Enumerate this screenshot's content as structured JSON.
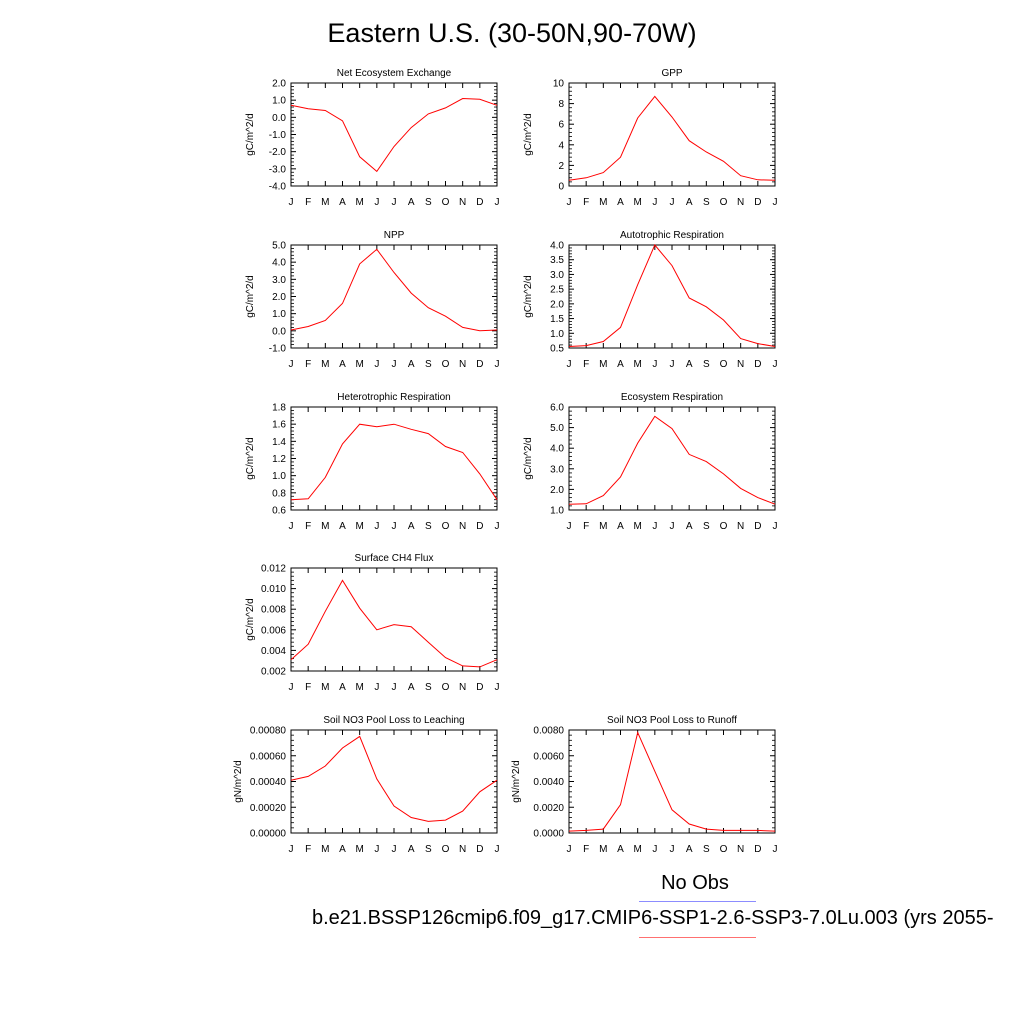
{
  "title": "Eastern U.S. (30-50N,90-70W)",
  "legend": {
    "obs_label": "No Obs",
    "obs_color": "#8c8cff",
    "model_label": "b.e21.BSSP126cmip6.f09_g17.CMIP6-SSP1-2.6-SSP3-7.0Lu.003 (yrs 2055-",
    "model_color": "#ff0000"
  },
  "chart_data": [
    {
      "type": "line",
      "title": "Net Ecosystem Exchange",
      "ylabel": "gC/m^2/d",
      "categories": [
        "J",
        "F",
        "M",
        "A",
        "M",
        "J",
        "J",
        "A",
        "S",
        "O",
        "N",
        "D",
        "J"
      ],
      "ylim": [
        -4.0,
        2.0
      ],
      "yticks": [
        "2.0",
        "1.0",
        "0.0",
        "-1.0",
        "-2.0",
        "-3.0",
        "-4.0"
      ],
      "ytick_values": [
        2.0,
        1.0,
        0.0,
        -1.0,
        -2.0,
        -3.0,
        -4.0
      ],
      "values": [
        0.7,
        0.5,
        0.4,
        -0.2,
        -2.3,
        -3.15,
        -1.7,
        -0.6,
        0.2,
        0.55,
        1.1,
        1.05,
        0.7
      ]
    },
    {
      "type": "line",
      "title": "GPP",
      "ylabel": "gC/m^2/d",
      "categories": [
        "J",
        "F",
        "M",
        "A",
        "M",
        "J",
        "J",
        "A",
        "S",
        "O",
        "N",
        "D",
        "J"
      ],
      "ylim": [
        0,
        10
      ],
      "yticks": [
        "10",
        "8",
        "6",
        "4",
        "2",
        "0"
      ],
      "ytick_values": [
        10,
        8,
        6,
        4,
        2,
        0
      ],
      "values": [
        0.55,
        0.8,
        1.3,
        2.8,
        6.6,
        8.7,
        6.7,
        4.4,
        3.3,
        2.4,
        1.0,
        0.6,
        0.55
      ]
    },
    {
      "type": "line",
      "title": "NPP",
      "ylabel": "gC/m^2/d",
      "categories": [
        "J",
        "F",
        "M",
        "A",
        "M",
        "J",
        "J",
        "A",
        "S",
        "O",
        "N",
        "D",
        "J"
      ],
      "ylim": [
        -1.0,
        5.0
      ],
      "yticks": [
        "5.0",
        "4.0",
        "3.0",
        "2.0",
        "1.0",
        "0.0",
        "-1.0"
      ],
      "ytick_values": [
        5.0,
        4.0,
        3.0,
        2.0,
        1.0,
        0.0,
        -1.0
      ],
      "values": [
        0.05,
        0.25,
        0.6,
        1.6,
        3.9,
        4.75,
        3.4,
        2.2,
        1.35,
        0.85,
        0.2,
        0.0,
        0.05
      ]
    },
    {
      "type": "line",
      "title": "Autotrophic Respiration",
      "ylabel": "gC/m^2/d",
      "categories": [
        "J",
        "F",
        "M",
        "A",
        "M",
        "J",
        "J",
        "A",
        "S",
        "O",
        "N",
        "D",
        "J"
      ],
      "ylim": [
        0.5,
        4.0
      ],
      "yticks": [
        "4.0",
        "3.5",
        "3.0",
        "2.5",
        "2.0",
        "1.5",
        "1.0",
        "0.5"
      ],
      "ytick_values": [
        4.0,
        3.5,
        3.0,
        2.5,
        2.0,
        1.5,
        1.0,
        0.5
      ],
      "values": [
        0.55,
        0.58,
        0.72,
        1.2,
        2.65,
        4.0,
        3.3,
        2.2,
        1.9,
        1.45,
        0.82,
        0.65,
        0.55
      ]
    },
    {
      "type": "line",
      "title": "Heterotrophic Respiration",
      "ylabel": "gC/m^2/d",
      "categories": [
        "J",
        "F",
        "M",
        "A",
        "M",
        "J",
        "J",
        "A",
        "S",
        "O",
        "N",
        "D",
        "J"
      ],
      "ylim": [
        0.6,
        1.8
      ],
      "yticks": [
        "1.8",
        "1.6",
        "1.4",
        "1.2",
        "1.0",
        "0.8",
        "0.6"
      ],
      "ytick_values": [
        1.8,
        1.6,
        1.4,
        1.2,
        1.0,
        0.8,
        0.6
      ],
      "values": [
        0.72,
        0.73,
        0.98,
        1.37,
        1.6,
        1.57,
        1.6,
        1.54,
        1.49,
        1.34,
        1.27,
        1.02,
        0.72
      ]
    },
    {
      "type": "line",
      "title": "Ecosystem Respiration",
      "ylabel": "gC/m^2/d",
      "categories": [
        "J",
        "F",
        "M",
        "A",
        "M",
        "J",
        "J",
        "A",
        "S",
        "O",
        "N",
        "D",
        "J"
      ],
      "ylim": [
        1.0,
        6.0
      ],
      "yticks": [
        "6.0",
        "5.0",
        "4.0",
        "3.0",
        "2.0",
        "1.0"
      ],
      "ytick_values": [
        6.0,
        5.0,
        4.0,
        3.0,
        2.0,
        1.0
      ],
      "values": [
        1.28,
        1.3,
        1.7,
        2.6,
        4.25,
        5.55,
        4.95,
        3.7,
        3.35,
        2.75,
        2.05,
        1.6,
        1.28
      ]
    },
    {
      "type": "line",
      "title": "Surface CH4 Flux",
      "ylabel": "gC/m^2/d",
      "categories": [
        "J",
        "F",
        "M",
        "A",
        "M",
        "J",
        "J",
        "A",
        "S",
        "O",
        "N",
        "D",
        "J"
      ],
      "ylim": [
        0.002,
        0.012
      ],
      "yticks": [
        "0.012",
        "0.010",
        "0.008",
        "0.006",
        "0.004",
        "0.002"
      ],
      "ytick_values": [
        0.012,
        0.01,
        0.008,
        0.006,
        0.004,
        0.002
      ],
      "values": [
        0.0031,
        0.0046,
        0.0078,
        0.0108,
        0.0081,
        0.006,
        0.0065,
        0.0063,
        0.0048,
        0.0033,
        0.0025,
        0.0024,
        0.0031
      ]
    },
    {
      "type": "line",
      "title": "Soil NO3 Pool Loss to Leaching",
      "ylabel": "gN/m^2/d",
      "categories": [
        "J",
        "F",
        "M",
        "A",
        "M",
        "J",
        "J",
        "A",
        "S",
        "O",
        "N",
        "D",
        "J"
      ],
      "ylim": [
        0,
        0.0008
      ],
      "yticks": [
        "0.00080",
        "0.00060",
        "0.00040",
        "0.00020",
        "0.00000"
      ],
      "ytick_values": [
        0.0008,
        0.0006,
        0.0004,
        0.0002,
        0.0
      ],
      "values": [
        0.00041,
        0.00044,
        0.00052,
        0.00066,
        0.00075,
        0.00042,
        0.00021,
        0.00012,
        9e-05,
        0.0001,
        0.00017,
        0.00032,
        0.00041
      ]
    },
    {
      "type": "line",
      "title": "Soil NO3 Pool Loss to Runoff",
      "ylabel": "gN/m^2/d",
      "categories": [
        "J",
        "F",
        "M",
        "A",
        "M",
        "J",
        "J",
        "A",
        "S",
        "O",
        "N",
        "D",
        "J"
      ],
      "ylim": [
        0,
        0.008
      ],
      "yticks": [
        "0.0080",
        "0.0060",
        "0.0040",
        "0.0020",
        "0.0000"
      ],
      "ytick_values": [
        0.008,
        0.006,
        0.004,
        0.002,
        0.0
      ],
      "values": [
        0.00015,
        0.0002,
        0.0003,
        0.0022,
        0.0078,
        0.0048,
        0.0018,
        0.0007,
        0.0003,
        0.0002,
        0.0002,
        0.0002,
        0.00015
      ]
    }
  ]
}
